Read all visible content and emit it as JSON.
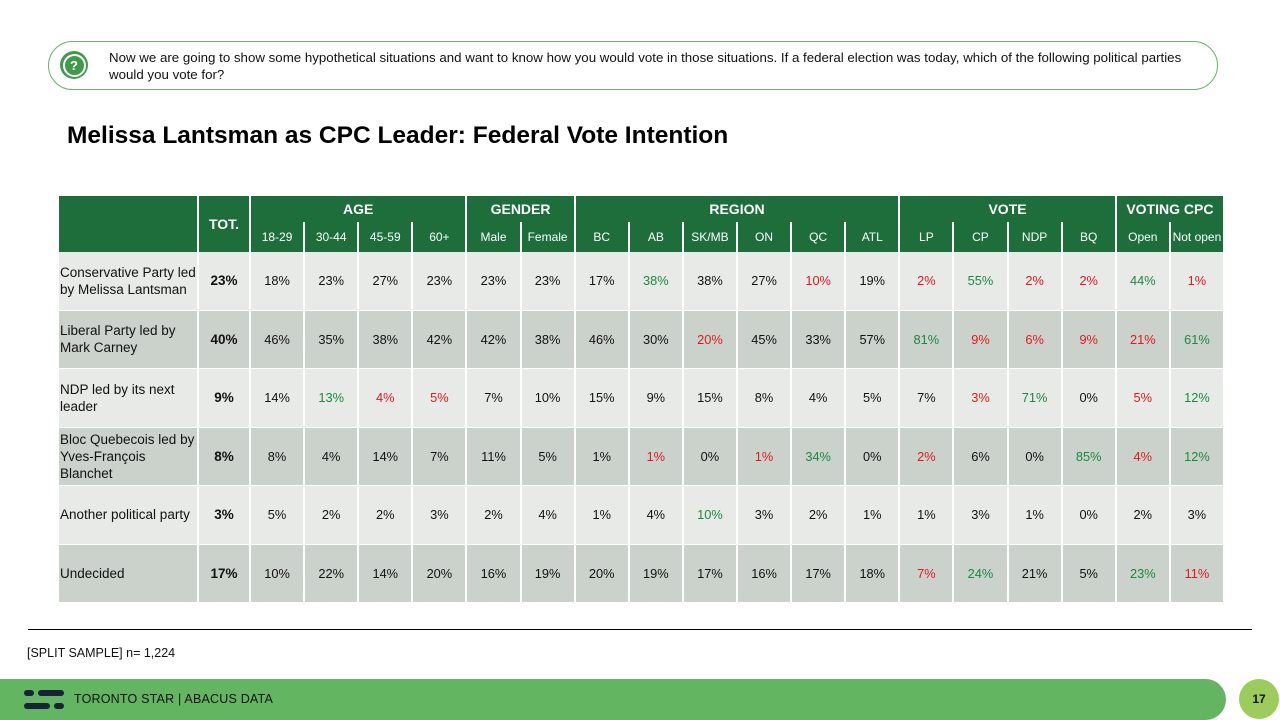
{
  "question": "Now we are going to show some hypothetical situations and want to know how you would vote in those situations. If a federal election was today, which of the following political parties would you vote for?",
  "title": "Melissa Lantsman as CPC Leader: Federal Vote Intention",
  "table": {
    "tot_label": "TOT.",
    "groups": [
      {
        "label": "AGE",
        "columns": [
          "18-29",
          "30-44",
          "45-59",
          "60+"
        ]
      },
      {
        "label": "GENDER",
        "columns": [
          "Male",
          "Female"
        ]
      },
      {
        "label": "REGION",
        "columns": [
          "BC",
          "AB",
          "SK/MB",
          "ON",
          "QC",
          "ATL"
        ]
      },
      {
        "label": "VOTE",
        "columns": [
          "LP",
          "CP",
          "NDP",
          "BQ"
        ]
      },
      {
        "label": "VOTING CPC",
        "columns": [
          "Open",
          "Not open"
        ]
      }
    ],
    "rows": [
      {
        "label": "Conservative Party led by Melissa Lantsman",
        "tot": "23%",
        "values": [
          "18%",
          "23%",
          "27%",
          "23%",
          "23%",
          "23%",
          "17%",
          "38%",
          "38%",
          "27%",
          "10%",
          "19%",
          "2%",
          "55%",
          "2%",
          "2%",
          "44%",
          "1%"
        ],
        "colors": [
          "black",
          "black",
          "black",
          "black",
          "black",
          "black",
          "black",
          "green",
          "black",
          "black",
          "red",
          "black",
          "red",
          "green",
          "red",
          "red",
          "green",
          "red"
        ]
      },
      {
        "label": "Liberal Party led by Mark Carney",
        "tot": "40%",
        "values": [
          "46%",
          "35%",
          "38%",
          "42%",
          "42%",
          "38%",
          "46%",
          "30%",
          "20%",
          "45%",
          "33%",
          "57%",
          "81%",
          "9%",
          "6%",
          "9%",
          "21%",
          "61%"
        ],
        "colors": [
          "black",
          "black",
          "black",
          "black",
          "black",
          "black",
          "black",
          "black",
          "red",
          "black",
          "black",
          "black",
          "green",
          "red",
          "red",
          "red",
          "red",
          "green"
        ]
      },
      {
        "label": "NDP led by its next leader",
        "tot": "9%",
        "values": [
          "14%",
          "13%",
          "4%",
          "5%",
          "7%",
          "10%",
          "15%",
          "9%",
          "15%",
          "8%",
          "4%",
          "5%",
          "7%",
          "3%",
          "71%",
          "0%",
          "5%",
          "12%"
        ],
        "colors": [
          "black",
          "green",
          "red",
          "red",
          "black",
          "black",
          "black",
          "black",
          "black",
          "black",
          "black",
          "black",
          "black",
          "red",
          "green",
          "black",
          "red",
          "green"
        ]
      },
      {
        "label": "Bloc Quebecois led by Yves-François Blanchet",
        "tot": "8%",
        "values": [
          "8%",
          "4%",
          "14%",
          "7%",
          "11%",
          "5%",
          "1%",
          "1%",
          "0%",
          "1%",
          "34%",
          "0%",
          "2%",
          "6%",
          "0%",
          "85%",
          "4%",
          "12%"
        ],
        "colors": [
          "black",
          "black",
          "black",
          "black",
          "black",
          "black",
          "black",
          "red",
          "black",
          "red",
          "green",
          "black",
          "red",
          "black",
          "black",
          "green",
          "red",
          "green"
        ]
      },
      {
        "label": "Another political party",
        "tot": "3%",
        "values": [
          "5%",
          "2%",
          "2%",
          "3%",
          "2%",
          "4%",
          "1%",
          "4%",
          "10%",
          "3%",
          "2%",
          "1%",
          "1%",
          "3%",
          "1%",
          "0%",
          "2%",
          "3%"
        ],
        "colors": [
          "black",
          "black",
          "black",
          "black",
          "black",
          "black",
          "black",
          "black",
          "green",
          "black",
          "black",
          "black",
          "black",
          "black",
          "black",
          "black",
          "black",
          "black"
        ]
      },
      {
        "label": "Undecided",
        "tot": "17%",
        "values": [
          "10%",
          "22%",
          "14%",
          "20%",
          "16%",
          "19%",
          "20%",
          "19%",
          "17%",
          "16%",
          "17%",
          "18%",
          "7%",
          "24%",
          "21%",
          "5%",
          "23%",
          "11%"
        ],
        "colors": [
          "black",
          "black",
          "black",
          "black",
          "black",
          "black",
          "black",
          "black",
          "black",
          "black",
          "black",
          "black",
          "red",
          "green",
          "black",
          "black",
          "green",
          "red"
        ]
      }
    ]
  },
  "sample_note": "[SPLIT SAMPLE] n= 1,224",
  "footer": "TORONTO STAR | ABACUS DATA",
  "page_number": "17",
  "colors": {
    "header_green": "#1d6e3b",
    "footer_green": "#63b561",
    "positive": "#1a8a3c",
    "negative": "#e01a1a"
  }
}
